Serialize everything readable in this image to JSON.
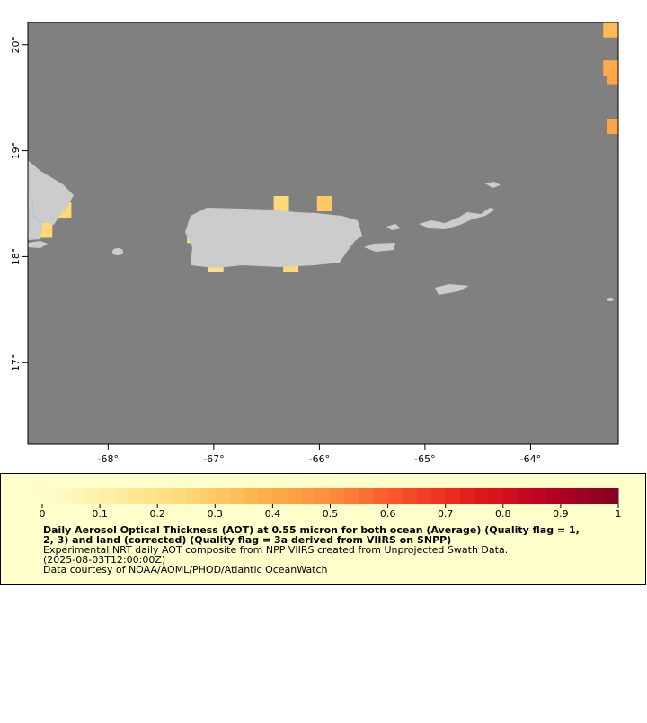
{
  "chart_data": {
    "type": "map",
    "xlim": [
      -68.76,
      -63.17
    ],
    "ylim": [
      16.23,
      20.21
    ],
    "xticks": [
      {
        "value": -68,
        "label": "-68°"
      },
      {
        "value": -67,
        "label": "-67°"
      },
      {
        "value": -66,
        "label": "-66°"
      },
      {
        "value": -65,
        "label": "-65°"
      },
      {
        "value": -64,
        "label": "-64°"
      }
    ],
    "yticks": [
      {
        "value": 17,
        "label": "17°"
      },
      {
        "value": 18,
        "label": "18°"
      },
      {
        "value": 19,
        "label": "19°"
      },
      {
        "value": 20,
        "label": "20°"
      }
    ],
    "ocean_color": "#808080",
    "cells": [
      {
        "lon": -63.24,
        "lat": 20.14,
        "value": 0.35
      },
      {
        "lon": -63.24,
        "lat": 19.78,
        "value": 0.4
      },
      {
        "lon": -63.2,
        "lat": 19.7,
        "value": 0.42
      },
      {
        "lon": -63.2,
        "lat": 19.23,
        "value": 0.42
      },
      {
        "lon": -66.36,
        "lat": 18.5,
        "value": 0.25
      },
      {
        "lon": -65.95,
        "lat": 18.5,
        "value": 0.3
      },
      {
        "lon": -67.18,
        "lat": 18.2,
        "value": 0.2
      },
      {
        "lon": -66.98,
        "lat": 17.93,
        "value": 0.2
      },
      {
        "lon": -66.27,
        "lat": 17.93,
        "value": 0.25
      },
      {
        "lon": -68.6,
        "lat": 18.25,
        "value": 0.25
      },
      {
        "lon": -68.42,
        "lat": 18.44,
        "value": 0.25
      }
    ],
    "colorbar": {
      "range": [
        0,
        1
      ],
      "ticks": [
        0,
        0.1,
        0.2,
        0.3,
        0.4,
        0.5,
        0.6,
        0.7,
        0.8,
        0.9,
        1
      ],
      "colors": [
        "#ffffcc",
        "#ffeda0",
        "#fed976",
        "#feb24c",
        "#fd8d3c",
        "#fc4e2a",
        "#e31a1c",
        "#bd0026",
        "#800026"
      ]
    },
    "title_lines": [
      "Daily Aerosol Optical Thickness (AOT) at 0.55 micron for both ocean (Average) (Quality flag = 1,",
      "2, 3) and land (corrected) (Quality flag = 3a derived from VIIRS on SNPP)"
    ],
    "notes": [
      "Experimental NRT daily AOT composite from NPP VIIRS created from Unprojected Swath Data.",
      "(2025-08-03T12:00:00Z)",
      "Data courtesy of NOAA/AOML/PHOD/Atlantic OceanWatch"
    ],
    "legend_color": "#ffffcc"
  }
}
